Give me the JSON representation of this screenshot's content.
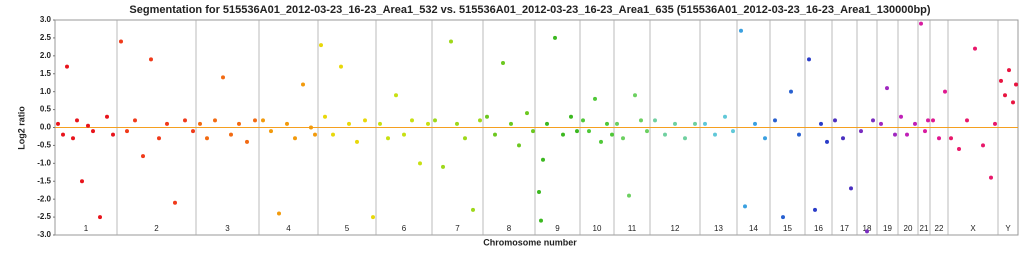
{
  "chart_data": {
    "type": "scatter",
    "title": "Segmentation for 515536A01_2012-03-23_16-23_Area1_532 vs. 515536A01_2012-03-23_16-23_Area1_635 (515536A01_2012-03-23_16-23_Area1_130000bp)",
    "x_label": "Chromosome number",
    "y_label": "Log2 ratio",
    "xlim": [
      0,
      963
    ],
    "x_boundaries": [
      62,
      141,
      204,
      263,
      321,
      377,
      428,
      480,
      525,
      559,
      595,
      645,
      682,
      715,
      750,
      777,
      802,
      822,
      843,
      863,
      875,
      893,
      943
    ],
    "ylim": [
      -3.0,
      3.0
    ],
    "yticks": [
      {
        "value": 3.0,
        "label": "3.0"
      },
      {
        "value": 2.5,
        "label": "2.5"
      },
      {
        "value": 2.0,
        "label": "2.0"
      },
      {
        "value": 1.5,
        "label": "1.5"
      },
      {
        "value": 1.0,
        "label": "1.0"
      },
      {
        "value": 0.5,
        "label": "0.5"
      },
      {
        "value": 0.0,
        "label": "0.0"
      },
      {
        "value": -0.5,
        "label": "-0.5"
      },
      {
        "value": -1.0,
        "label": "-1.0"
      },
      {
        "value": -1.5,
        "label": "-1.5"
      },
      {
        "value": -2.0,
        "label": "-2.0"
      },
      {
        "value": -2.5,
        "label": "-2.5"
      },
      {
        "value": -3.0,
        "label": "-3.0"
      }
    ],
    "series": [
      {
        "name": "1",
        "color": "#e8141c",
        "x": [
          3,
          8,
          12,
          18,
          22,
          27,
          33,
          38,
          45,
          52,
          58
        ],
        "values": [
          0.1,
          -0.2,
          1.7,
          -0.3,
          0.2,
          -1.5,
          0.05,
          -0.1,
          -2.5,
          0.3,
          -0.2
        ]
      },
      {
        "name": "2",
        "color": "#f03a1a",
        "x": [
          66,
          72,
          80,
          88,
          96,
          104,
          112,
          120,
          130,
          138
        ],
        "values": [
          2.4,
          -0.1,
          0.2,
          -0.8,
          1.9,
          -0.3,
          0.1,
          -2.1,
          0.2,
          -0.1
        ]
      },
      {
        "name": "3",
        "color": "#f26a12",
        "x": [
          145,
          152,
          160,
          168,
          176,
          184,
          192,
          200
        ],
        "values": [
          0.1,
          -0.3,
          0.2,
          1.4,
          -0.2,
          0.1,
          -0.4,
          0.2
        ]
      },
      {
        "name": "4",
        "color": "#f29a0c",
        "x": [
          208,
          216,
          224,
          232,
          240,
          248,
          256,
          260
        ],
        "values": [
          0.2,
          -0.1,
          -2.4,
          0.1,
          -0.3,
          1.2,
          0.0,
          -0.2
        ]
      },
      {
        "name": "5",
        "color": "#e8d80a",
        "x": [
          266,
          270,
          278,
          286,
          294,
          302,
          310,
          318
        ],
        "values": [
          2.3,
          0.3,
          -0.2,
          1.7,
          0.1,
          -0.4,
          0.2,
          -2.5
        ]
      },
      {
        "name": "6",
        "color": "#c8e012",
        "x": [
          325,
          333,
          341,
          349,
          357,
          365,
          373
        ],
        "values": [
          0.1,
          -0.3,
          0.9,
          -0.2,
          0.2,
          -1.0,
          0.1
        ]
      },
      {
        "name": "7",
        "color": "#9ed81a",
        "x": [
          380,
          388,
          396,
          402,
          410,
          418,
          425
        ],
        "values": [
          0.2,
          -1.1,
          2.4,
          0.1,
          -0.3,
          -2.3,
          0.2
        ]
      },
      {
        "name": "8",
        "color": "#6cc820",
        "x": [
          432,
          440,
          448,
          456,
          464,
          472,
          478
        ],
        "values": [
          0.3,
          -0.2,
          1.8,
          0.1,
          -0.5,
          0.4,
          -0.1
        ]
      },
      {
        "name": "9",
        "color": "#3cb820",
        "x": [
          484,
          486,
          488,
          492,
          500,
          508,
          516,
          522
        ],
        "values": [
          -1.8,
          -2.6,
          -0.9,
          0.1,
          2.5,
          -0.2,
          0.3,
          -0.1
        ]
      },
      {
        "name": "10",
        "color": "#50c838",
        "x": [
          528,
          534,
          540,
          546,
          552,
          557
        ],
        "values": [
          0.2,
          -0.1,
          0.8,
          -0.4,
          0.1,
          -0.2
        ]
      },
      {
        "name": "11",
        "color": "#6cd060",
        "x": [
          562,
          568,
          574,
          580,
          586,
          592
        ],
        "values": [
          0.1,
          -0.3,
          -1.9,
          0.9,
          0.2,
          -0.1
        ]
      },
      {
        "name": "12",
        "color": "#70d0a0",
        "x": [
          600,
          610,
          620,
          630,
          640
        ],
        "values": [
          0.2,
          -0.2,
          0.1,
          -0.3,
          0.1
        ]
      },
      {
        "name": "13",
        "color": "#60c8d8",
        "x": [
          650,
          660,
          670,
          678
        ],
        "values": [
          0.1,
          -0.2,
          0.3,
          -0.1
        ]
      },
      {
        "name": "14",
        "color": "#3aa0e0",
        "x": [
          686,
          690,
          700,
          710
        ],
        "values": [
          2.7,
          -2.2,
          0.1,
          -0.3
        ]
      },
      {
        "name": "15",
        "color": "#2860d0",
        "x": [
          720,
          728,
          736,
          744
        ],
        "values": [
          0.2,
          -2.5,
          1.0,
          -0.2
        ]
      },
      {
        "name": "16",
        "color": "#2a3cc8",
        "x": [
          754,
          760,
          766,
          772
        ],
        "values": [
          1.9,
          -2.3,
          0.1,
          -0.4
        ]
      },
      {
        "name": "17",
        "color": "#4a30c0",
        "x": [
          780,
          788,
          796
        ],
        "values": [
          0.2,
          -0.3,
          -1.7
        ]
      },
      {
        "name": "18",
        "color": "#7a2cc0",
        "x": [
          806,
          812,
          818
        ],
        "values": [
          -0.1,
          -2.9,
          0.2
        ]
      },
      {
        "name": "19",
        "color": "#a028c0",
        "x": [
          826,
          832,
          840
        ],
        "values": [
          0.1,
          1.1,
          -0.2
        ]
      },
      {
        "name": "20",
        "color": "#c020b8",
        "x": [
          846,
          852,
          860
        ],
        "values": [
          0.3,
          -0.2,
          0.1
        ]
      },
      {
        "name": "21",
        "color": "#d81ca0",
        "x": [
          866,
          870,
          873
        ],
        "values": [
          2.9,
          -0.1,
          0.2
        ]
      },
      {
        "name": "22",
        "color": "#e01890",
        "x": [
          878,
          884,
          890
        ],
        "values": [
          0.2,
          -0.3,
          1.0
        ]
      },
      {
        "name": "X",
        "color": "#e8186a",
        "x": [
          896,
          904,
          912,
          920,
          928,
          936,
          940
        ],
        "values": [
          -0.3,
          -0.6,
          0.2,
          2.2,
          -0.5,
          -1.4,
          0.1
        ]
      },
      {
        "name": "Y",
        "color": "#e81440",
        "x": [
          946,
          950,
          954,
          958,
          961
        ],
        "values": [
          1.3,
          0.9,
          1.6,
          0.7,
          1.2
        ]
      }
    ]
  }
}
